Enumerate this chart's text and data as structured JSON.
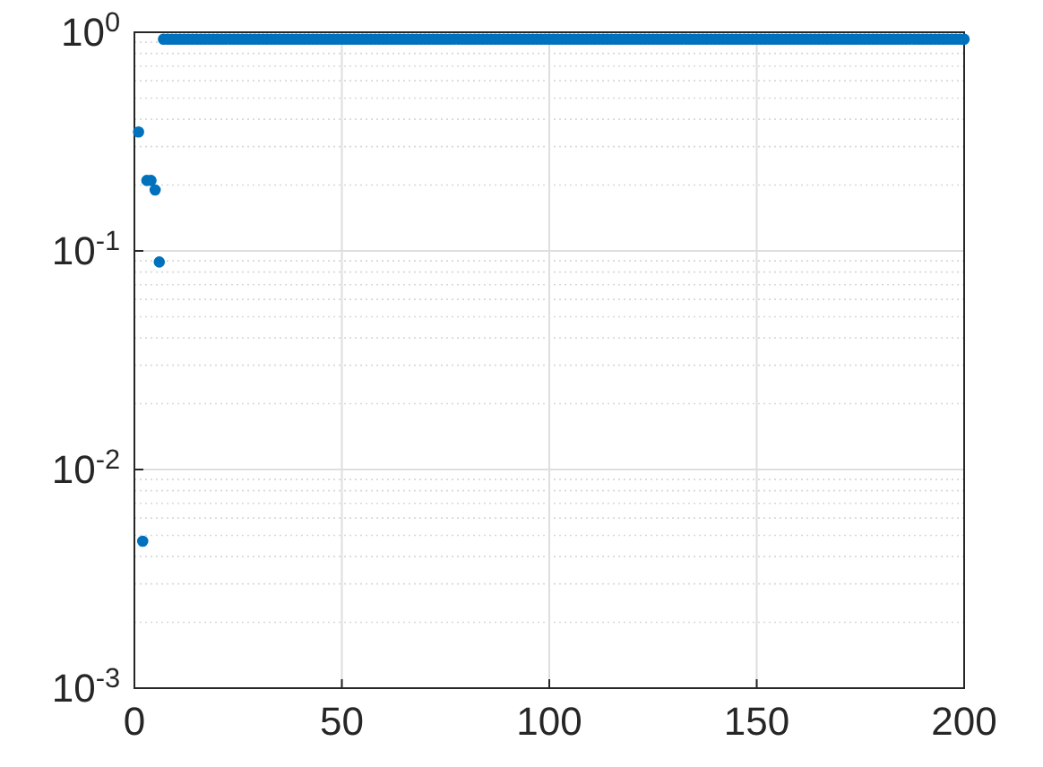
{
  "chart_data": {
    "type": "scatter",
    "log": "y",
    "grid": true,
    "marker": "circle",
    "xlim": [
      0,
      200
    ],
    "xticks": [
      0,
      50,
      100,
      150,
      200
    ],
    "ylim": [
      0.001,
      1
    ],
    "yticks": [
      {
        "value": 0.001,
        "label": "10$^{-3}$"
      },
      {
        "value": 0.01,
        "label": "10$^{-2}$"
      },
      {
        "value": 0.1,
        "label": "10$^{-1}$"
      },
      {
        "value": 1,
        "label": "10$^{0}$"
      }
    ],
    "series": [
      {
        "color": "#0072bd",
        "x": [
          1,
          2,
          3,
          4,
          5,
          6,
          7,
          8,
          9,
          10,
          11,
          12,
          13,
          14,
          15,
          16,
          17,
          18,
          19,
          20,
          21,
          22,
          23,
          24,
          25,
          26,
          27,
          28,
          29,
          30,
          31,
          32,
          33,
          34,
          35,
          36,
          37,
          38,
          39,
          40,
          41,
          42,
          43,
          44,
          45,
          46,
          47,
          48,
          49,
          50,
          51,
          52,
          53,
          54,
          55,
          56,
          57,
          58,
          59,
          60,
          61,
          62,
          63,
          64,
          65,
          66,
          67,
          68,
          69,
          70,
          71,
          72,
          73,
          74,
          75,
          76,
          77,
          78,
          79,
          80,
          81,
          82,
          83,
          84,
          85,
          86,
          87,
          88,
          89,
          90,
          91,
          92,
          93,
          94,
          95,
          96,
          97,
          98,
          99,
          100,
          101,
          102,
          103,
          104,
          105,
          106,
          107,
          108,
          109,
          110,
          111,
          112,
          113,
          114,
          115,
          116,
          117,
          118,
          119,
          120,
          121,
          122,
          123,
          124,
          125,
          126,
          127,
          128,
          129,
          130,
          131,
          132,
          133,
          134,
          135,
          136,
          137,
          138,
          139,
          140,
          141,
          142,
          143,
          144,
          145,
          146,
          147,
          148,
          149,
          150,
          151,
          152,
          153,
          154,
          155,
          156,
          157,
          158,
          159,
          160,
          161,
          162,
          163,
          164,
          165,
          166,
          167,
          168,
          169,
          170,
          171,
          172,
          173,
          174,
          175,
          176,
          177,
          178,
          179,
          180,
          181,
          182,
          183,
          184,
          185,
          186,
          187,
          188,
          189,
          190,
          191,
          192,
          193,
          194,
          195,
          196,
          197,
          198,
          199,
          200
        ],
        "values": [
          0.35,
          0.0047,
          0.21,
          0.21,
          0.19,
          0.089,
          0.93,
          0.93,
          0.93,
          0.93,
          0.93,
          0.93,
          0.93,
          0.93,
          0.93,
          0.93,
          0.93,
          0.93,
          0.93,
          0.93,
          0.93,
          0.93,
          0.93,
          0.93,
          0.93,
          0.93,
          0.93,
          0.93,
          0.93,
          0.93,
          0.93,
          0.93,
          0.93,
          0.93,
          0.93,
          0.93,
          0.93,
          0.93,
          0.93,
          0.93,
          0.93,
          0.93,
          0.93,
          0.93,
          0.93,
          0.93,
          0.93,
          0.93,
          0.93,
          0.93,
          0.93,
          0.93,
          0.93,
          0.93,
          0.93,
          0.93,
          0.93,
          0.93,
          0.93,
          0.93,
          0.93,
          0.93,
          0.93,
          0.93,
          0.93,
          0.93,
          0.93,
          0.93,
          0.93,
          0.93,
          0.93,
          0.93,
          0.93,
          0.93,
          0.93,
          0.93,
          0.93,
          0.93,
          0.93,
          0.93,
          0.93,
          0.93,
          0.93,
          0.93,
          0.93,
          0.93,
          0.93,
          0.93,
          0.93,
          0.93,
          0.93,
          0.93,
          0.93,
          0.93,
          0.93,
          0.93,
          0.93,
          0.93,
          0.93,
          0.93,
          0.93,
          0.93,
          0.93,
          0.93,
          0.93,
          0.93,
          0.93,
          0.93,
          0.93,
          0.93,
          0.93,
          0.93,
          0.93,
          0.93,
          0.93,
          0.93,
          0.93,
          0.93,
          0.93,
          0.93,
          0.93,
          0.93,
          0.93,
          0.93,
          0.93,
          0.93,
          0.93,
          0.93,
          0.93,
          0.93,
          0.93,
          0.93,
          0.93,
          0.93,
          0.93,
          0.93,
          0.93,
          0.93,
          0.93,
          0.93,
          0.93,
          0.93,
          0.93,
          0.93,
          0.93,
          0.93,
          0.93,
          0.93,
          0.93,
          0.93,
          0.93,
          0.93,
          0.93,
          0.93,
          0.93,
          0.93,
          0.93,
          0.93,
          0.93,
          0.93,
          0.93,
          0.93,
          0.93,
          0.93,
          0.93,
          0.93,
          0.93,
          0.93,
          0.93,
          0.93,
          0.93,
          0.93,
          0.93,
          0.93,
          0.93,
          0.93,
          0.93,
          0.93,
          0.93,
          0.93,
          0.93,
          0.93,
          0.93,
          0.93,
          0.93,
          0.93,
          0.93,
          0.93,
          0.93,
          0.93,
          0.93,
          0.93,
          0.93,
          0.93,
          0.93,
          0.93,
          0.93,
          0.93,
          0.93,
          0.93
        ]
      }
    ]
  }
}
